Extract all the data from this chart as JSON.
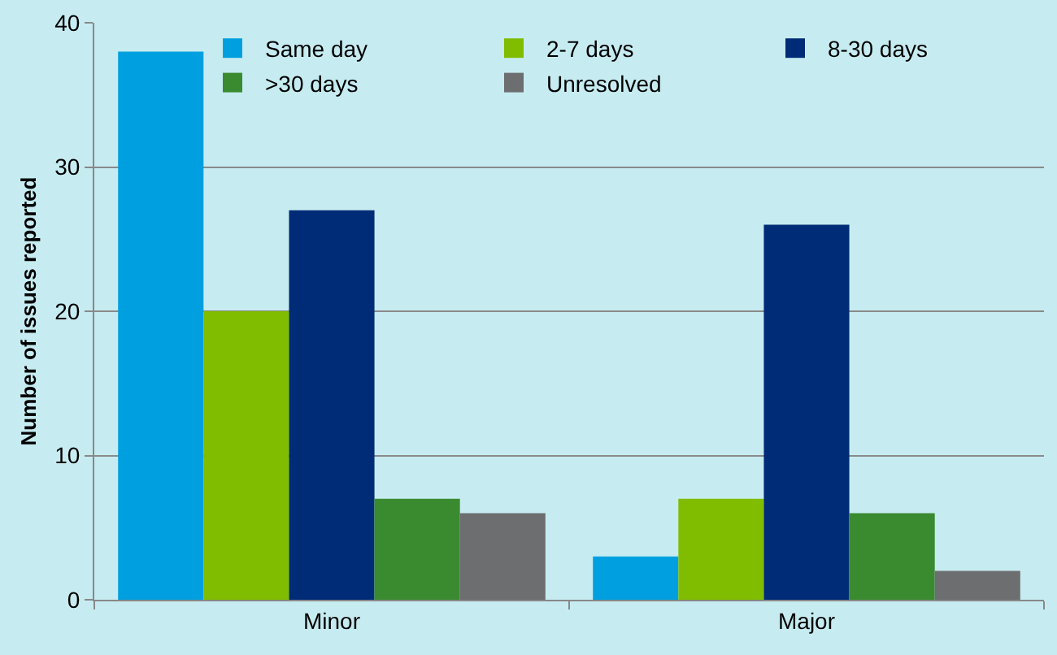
{
  "chart_data": {
    "type": "bar",
    "ylabel": "Number of issues reported",
    "categories": [
      "Minor",
      "Major"
    ],
    "series": [
      {
        "name": "Same day",
        "color": "#00a0e0",
        "values": [
          38,
          3
        ]
      },
      {
        "name": "2-7 days",
        "color": "#80bc00",
        "values": [
          20,
          7
        ]
      },
      {
        "name": "8-30 days",
        "color": "#002c77",
        "values": [
          27,
          26
        ]
      },
      {
        "name": ">30 days",
        "color": "#3a8a30",
        "values": [
          7,
          6
        ]
      },
      {
        "name": "Unresolved",
        "color": "#6d6e70",
        "values": [
          6,
          2
        ]
      }
    ],
    "ylim": [
      0,
      40
    ],
    "yticks": [
      0,
      10,
      20,
      30,
      40
    ],
    "grid": "y",
    "legend": "top right"
  }
}
